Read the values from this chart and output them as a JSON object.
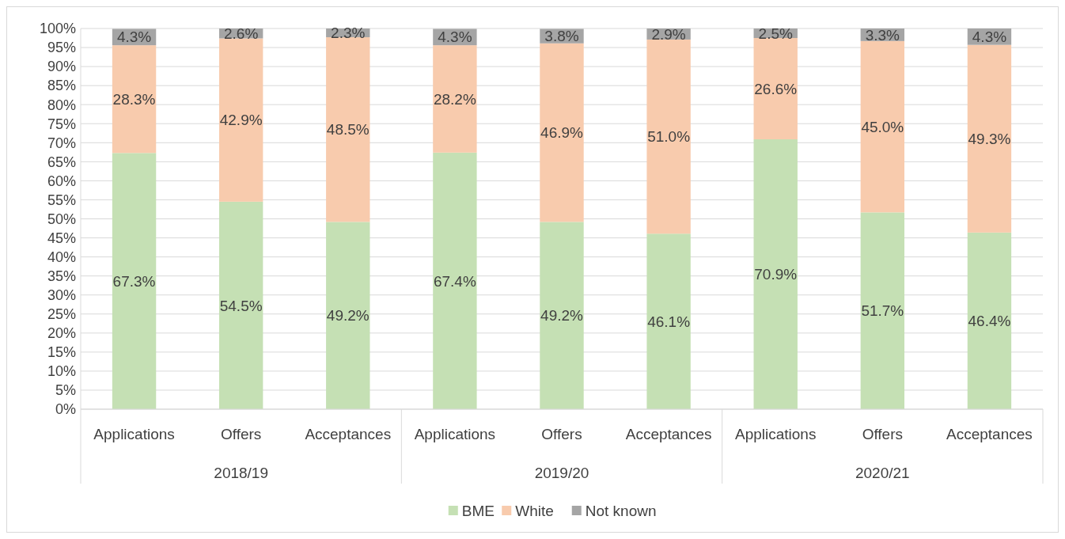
{
  "chart_data": {
    "type": "bar",
    "stacked": true,
    "categories": [
      "Applications",
      "Offers",
      "Acceptances",
      "Applications",
      "Offers",
      "Acceptances",
      "Applications",
      "Offers",
      "Acceptances"
    ],
    "annotations": [
      "2018/19",
      "2019/20",
      "2020/21"
    ],
    "series": [
      {
        "name": "BME",
        "color": "#c5e0b4",
        "values": [
          67.3,
          54.5,
          49.2,
          67.4,
          49.2,
          46.1,
          70.9,
          51.7,
          46.4
        ],
        "value_labels": [
          "67.3%",
          "54.5%",
          "49.2%",
          "67.4%",
          "49.2%",
          "46.1%",
          "70.9%",
          "51.7%",
          "46.4%"
        ]
      },
      {
        "name": "White",
        "color": "#f8cbad",
        "values": [
          28.3,
          42.9,
          48.5,
          28.2,
          46.9,
          51.0,
          26.6,
          45.0,
          49.3
        ],
        "value_labels": [
          "28.3%",
          "42.9%",
          "48.5%",
          "28.2%",
          "46.9%",
          "51.0%",
          "26.6%",
          "45.0%",
          "49.3%"
        ]
      },
      {
        "name": "Not known",
        "color": "#a5a5a5",
        "values": [
          4.3,
          2.6,
          2.3,
          4.3,
          3.8,
          2.9,
          2.5,
          3.3,
          4.3
        ],
        "value_labels": [
          "4.3%",
          "2.6%",
          "2.3%",
          "4.3%",
          "3.8%",
          "2.9%",
          "2.5%",
          "3.3%",
          "4.3%"
        ]
      }
    ],
    "ylim": [
      0,
      100
    ],
    "yticks": [
      {
        "value": 0,
        "label": "0%"
      },
      {
        "value": 5,
        "label": "5%"
      },
      {
        "value": 10,
        "label": "10%"
      },
      {
        "value": 15,
        "label": "15%"
      },
      {
        "value": 20,
        "label": "20%"
      },
      {
        "value": 25,
        "label": "25%"
      },
      {
        "value": 30,
        "label": "30%"
      },
      {
        "value": 35,
        "label": "35%"
      },
      {
        "value": 40,
        "label": "40%"
      },
      {
        "value": 45,
        "label": "45%"
      },
      {
        "value": 50,
        "label": "50%"
      },
      {
        "value": 55,
        "label": "55%"
      },
      {
        "value": 60,
        "label": "60%"
      },
      {
        "value": 65,
        "label": "65%"
      },
      {
        "value": 70,
        "label": "70%"
      },
      {
        "value": 75,
        "label": "75%"
      },
      {
        "value": 80,
        "label": "80%"
      },
      {
        "value": 85,
        "label": "85%"
      },
      {
        "value": 90,
        "label": "90%"
      },
      {
        "value": 95,
        "label": "95%"
      },
      {
        "value": 100,
        "label": "100%"
      }
    ],
    "grid": "y",
    "legend": "bottom"
  }
}
